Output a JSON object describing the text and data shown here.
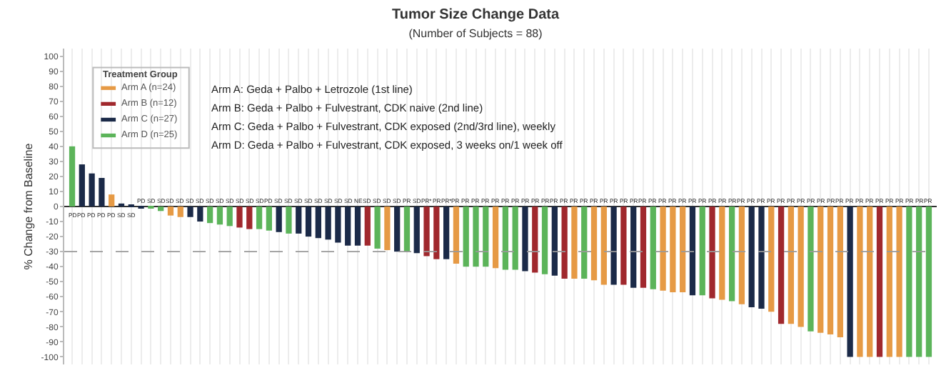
{
  "chart_data": {
    "type": "bar",
    "title": "Tumor Size Change Data",
    "subtitle": "(Number of Subjects = 88)",
    "ylabel": "% Change from Baseline",
    "categories": [
      null,
      null,
      null,
      null,
      null,
      null,
      null,
      null,
      null,
      null,
      null,
      null,
      null,
      null,
      null,
      null,
      null,
      null,
      null,
      null,
      null,
      null,
      null,
      null,
      null,
      null,
      null,
      null,
      null,
      null,
      null,
      null,
      null,
      null,
      null,
      null,
      null,
      null,
      null,
      null,
      null,
      null,
      null,
      null,
      null,
      null,
      null,
      null,
      null,
      null,
      null,
      null,
      null,
      null,
      null,
      null,
      null,
      null,
      null,
      null,
      null,
      null,
      null,
      null,
      null,
      null,
      null,
      null,
      null,
      null,
      null,
      null,
      null,
      null,
      null,
      null,
      null,
      null,
      null,
      null,
      null,
      null,
      null,
      null,
      null,
      null,
      null,
      null
    ],
    "legend_title": "Treatment Group",
    "legend": "top left",
    "grid": "x",
    "ylim": [
      -105,
      105
    ],
    "yticks": [
      -100,
      -90,
      -80,
      -70,
      -60,
      -50,
      -40,
      -30,
      -20,
      -10,
      0,
      10,
      20,
      30,
      40,
      50,
      60,
      70,
      80,
      90,
      100
    ],
    "ref_lines": [
      {
        "axis": "y",
        "value": -30,
        "color": "#999999",
        "line_style": "dashed"
      }
    ],
    "annotations": [
      "Arm A: Geda + Palbo + Letrozole (1st line)",
      "Arm B: Geda + Palbo + Fulvestrant, CDK naive (2nd line)",
      "Arm C: Geda + Palbo + Fulvestrant, CDK exposed (2nd/3rd line), weekly",
      "Arm D: Geda + Palbo + Fulvestrant, CDK exposed, 3 weeks on/1 week off"
    ],
    "series": [
      {
        "name": "Arm A (n=24)",
        "color": "#e69a45",
        "values": [
          null,
          null,
          null,
          null,
          8,
          null,
          null,
          null,
          null,
          null,
          -6,
          -7,
          null,
          null,
          null,
          null,
          null,
          null,
          null,
          null,
          null,
          null,
          null,
          null,
          null,
          null,
          null,
          null,
          null,
          null,
          null,
          null,
          -29,
          null,
          null,
          null,
          null,
          null,
          null,
          -38,
          null,
          null,
          null,
          -41,
          null,
          null,
          null,
          null,
          null,
          null,
          null,
          -48,
          null,
          -49,
          -52,
          null,
          null,
          null,
          null,
          null,
          -56,
          -57,
          -57,
          null,
          null,
          null,
          -62,
          null,
          -65,
          null,
          null,
          -70,
          null,
          -78,
          -80,
          null,
          -84,
          -85,
          -87,
          null,
          -100,
          -100,
          null,
          -100,
          -100,
          null,
          null,
          null
        ],
        "value_labels": [
          null,
          null,
          null,
          null,
          "PD",
          null,
          null,
          null,
          null,
          null,
          "SD",
          "SD",
          null,
          null,
          null,
          null,
          null,
          null,
          null,
          null,
          null,
          null,
          null,
          null,
          null,
          null,
          null,
          null,
          null,
          null,
          null,
          null,
          "SD",
          null,
          null,
          null,
          null,
          null,
          null,
          "PR",
          null,
          null,
          null,
          "PR",
          null,
          null,
          null,
          null,
          null,
          null,
          null,
          "PR",
          null,
          "PR",
          "PR",
          null,
          null,
          null,
          null,
          null,
          "PR",
          "PR",
          "PR",
          null,
          null,
          null,
          "PR",
          null,
          "PR",
          null,
          null,
          "PR",
          null,
          "PR",
          "PR",
          null,
          "PR",
          "PR",
          "PR",
          null,
          "PR",
          "PR",
          null,
          "PR",
          "PR",
          null,
          null,
          null
        ]
      },
      {
        "name": "Arm B (n=12)",
        "color": "#a0282d",
        "values": [
          null,
          null,
          null,
          null,
          null,
          null,
          null,
          null,
          null,
          null,
          null,
          null,
          null,
          null,
          null,
          null,
          null,
          -14,
          -15,
          null,
          null,
          null,
          null,
          null,
          null,
          null,
          null,
          null,
          null,
          null,
          -26,
          null,
          null,
          null,
          null,
          null,
          -33,
          -35,
          null,
          null,
          null,
          null,
          null,
          null,
          null,
          null,
          null,
          -44,
          null,
          null,
          -48,
          null,
          null,
          null,
          null,
          null,
          -52,
          null,
          -54,
          null,
          null,
          null,
          null,
          null,
          null,
          -61,
          null,
          null,
          null,
          null,
          null,
          null,
          -78,
          null,
          null,
          null,
          null,
          null,
          null,
          null,
          null,
          null,
          -100,
          null,
          null,
          null,
          null,
          null
        ],
        "value_labels": [
          null,
          null,
          null,
          null,
          null,
          null,
          null,
          null,
          null,
          null,
          null,
          null,
          null,
          null,
          null,
          null,
          null,
          "SD",
          "SD",
          null,
          null,
          null,
          null,
          null,
          null,
          null,
          null,
          null,
          null,
          null,
          "SD",
          null,
          null,
          null,
          null,
          null,
          "PR*",
          "PR",
          null,
          null,
          null,
          null,
          null,
          null,
          null,
          null,
          null,
          "PR",
          null,
          null,
          "PR",
          null,
          null,
          null,
          null,
          null,
          "PR",
          null,
          "PR",
          null,
          null,
          null,
          null,
          null,
          null,
          "PR",
          null,
          null,
          null,
          null,
          null,
          null,
          "PR",
          null,
          null,
          null,
          null,
          null,
          null,
          null,
          null,
          null,
          "PR",
          null,
          null,
          null,
          null,
          null
        ]
      },
      {
        "name": "Arm C (n=27)",
        "color": "#1b2a48",
        "values": [
          null,
          28,
          22,
          19,
          null,
          2,
          1,
          -1,
          null,
          null,
          null,
          null,
          -7,
          -10,
          null,
          null,
          null,
          null,
          null,
          null,
          null,
          -17,
          null,
          -18,
          -20,
          -21,
          -22,
          -24,
          -26,
          -26,
          null,
          null,
          null,
          -30,
          null,
          -31,
          null,
          null,
          -35,
          null,
          null,
          null,
          null,
          null,
          null,
          null,
          -43,
          null,
          null,
          -46,
          null,
          null,
          null,
          null,
          null,
          -52,
          null,
          -54,
          null,
          null,
          null,
          null,
          null,
          -59,
          null,
          null,
          null,
          null,
          null,
          -67,
          -68,
          null,
          null,
          null,
          null,
          null,
          null,
          null,
          null,
          -100,
          null,
          null,
          null,
          null,
          null,
          null,
          null,
          null
        ],
        "value_labels": [
          null,
          "PD",
          "PD",
          "PD",
          null,
          "SD",
          "SD",
          "PD",
          null,
          null,
          null,
          null,
          "SD",
          "SD",
          null,
          null,
          null,
          null,
          null,
          null,
          null,
          "SD",
          null,
          "SD",
          "SD",
          "SD",
          "SD",
          "SD",
          "SD",
          "NE",
          null,
          null,
          null,
          "SD",
          null,
          "SD",
          null,
          null,
          "PR*",
          null,
          null,
          null,
          null,
          null,
          null,
          null,
          "PR",
          null,
          null,
          "PR",
          null,
          null,
          null,
          null,
          null,
          "PR",
          null,
          "PR",
          null,
          null,
          null,
          null,
          null,
          "PR",
          null,
          null,
          null,
          null,
          null,
          "PR",
          "PR",
          null,
          null,
          null,
          null,
          null,
          null,
          null,
          null,
          "PR",
          null,
          null,
          null,
          null,
          null,
          null,
          null,
          null
        ]
      },
      {
        "name": "Arm D (n=25)",
        "color": "#5cb45a",
        "values": [
          40,
          null,
          null,
          null,
          null,
          null,
          null,
          null,
          -1,
          -3,
          null,
          null,
          null,
          null,
          -11,
          -12,
          -13,
          null,
          null,
          -15,
          -16,
          null,
          -18,
          null,
          null,
          null,
          null,
          null,
          null,
          null,
          null,
          -28,
          null,
          null,
          -30,
          null,
          null,
          null,
          null,
          null,
          -40,
          -40,
          -40,
          null,
          -42,
          -42,
          null,
          null,
          -45,
          null,
          null,
          null,
          -48,
          null,
          null,
          null,
          null,
          null,
          null,
          -55,
          null,
          null,
          null,
          null,
          -59,
          null,
          null,
          -63,
          null,
          null,
          null,
          null,
          null,
          null,
          null,
          -83,
          null,
          null,
          null,
          null,
          null,
          null,
          null,
          null,
          null,
          -100,
          -100,
          -100
        ],
        "value_labels": [
          "PD",
          null,
          null,
          null,
          null,
          null,
          null,
          null,
          "SD",
          "SD",
          null,
          null,
          null,
          null,
          "SD",
          "SD",
          "SD",
          null,
          null,
          "SD",
          "PD",
          null,
          "SD",
          null,
          null,
          null,
          null,
          null,
          null,
          null,
          null,
          "SD",
          null,
          null,
          "PR",
          null,
          null,
          null,
          null,
          null,
          "PR",
          "PR",
          "PR",
          null,
          "PR",
          "PR",
          null,
          null,
          "PR",
          null,
          null,
          null,
          "PR",
          null,
          null,
          null,
          null,
          null,
          null,
          "PR",
          null,
          null,
          null,
          null,
          "PR",
          null,
          null,
          "PR",
          null,
          null,
          null,
          null,
          null,
          null,
          null,
          "PR",
          null,
          null,
          null,
          null,
          null,
          null,
          null,
          null,
          null,
          "PR",
          "PR",
          "PR"
        ]
      }
    ]
  }
}
